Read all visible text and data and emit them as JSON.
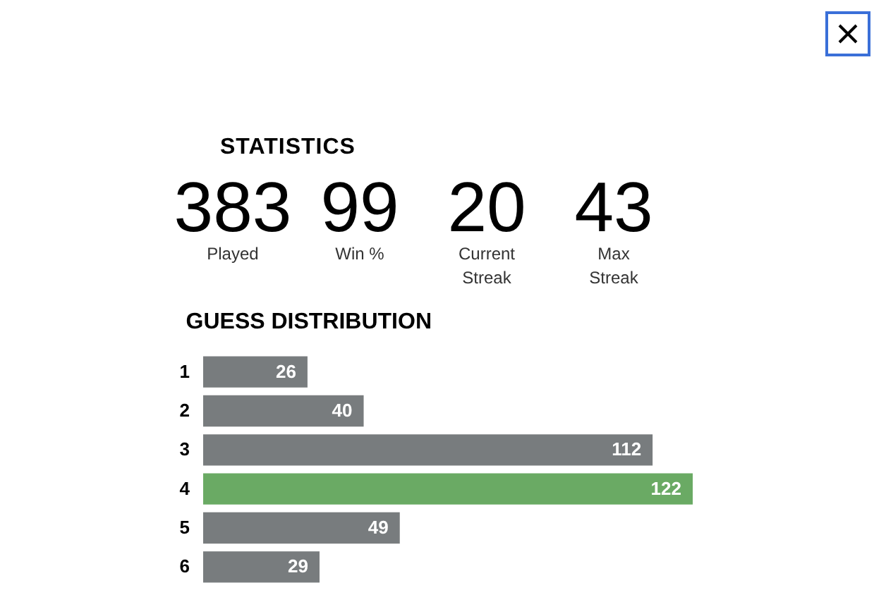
{
  "chart_data": [
    {
      "type": "other",
      "title": "STATISTICS",
      "annotations": [
        "383",
        "Played",
        "99",
        "Win %",
        "20",
        "Current Streak",
        "43",
        "Max Streak"
      ]
    },
    {
      "type": "bar",
      "title": "GUESS DISTRIBUTION",
      "orientation": "horizontal",
      "categories": [
        "1",
        "2",
        "3",
        "4",
        "5",
        "6"
      ],
      "values": [
        26,
        40,
        112,
        122,
        49,
        29
      ],
      "colors": [
        "#787c7e",
        "#787c7e",
        "#787c7e",
        "#6aaa64",
        "#787c7e",
        "#787c7e"
      ],
      "data_labels": true
    }
  ]
}
